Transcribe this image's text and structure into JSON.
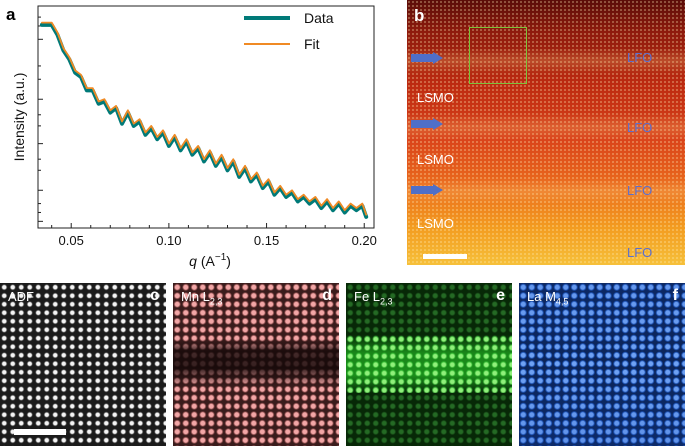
{
  "figure": {
    "panel_a": {
      "letter": "a",
      "xlabel_var": "q",
      "xlabel_unit": "(A",
      "xlabel_exp": "−1",
      "xlabel_close": ")",
      "ylabel": "Intensity (a.u.)",
      "legend": [
        {
          "label": "Data",
          "color": "#007a78"
        },
        {
          "label": "Fit",
          "color": "#f08a24"
        }
      ],
      "x_tick_labels": [
        "0.05",
        "0.10",
        "0.15",
        "0.20"
      ]
    },
    "panel_b": {
      "letter": "b",
      "labels_lfo": [
        "LFO",
        "LFO",
        "LFO",
        "LFO"
      ],
      "labels_lsmo": [
        "LSMO",
        "LSMO",
        "LSMO"
      ]
    },
    "panel_c": {
      "letter": "c",
      "label": "ADF"
    },
    "panel_d": {
      "letter": "d",
      "label": "Mn L",
      "sub": "2,3"
    },
    "panel_e": {
      "letter": "e",
      "label": "Fe L",
      "sub": "2,3"
    },
    "panel_f": {
      "letter": "f",
      "label": "La M",
      "sub": "4,5"
    }
  },
  "chart_data": {
    "type": "line",
    "title": "",
    "xlabel": "q (A^-1)",
    "ylabel": "Intensity (a.u.)",
    "xlim": [
      0.033,
      0.205
    ],
    "ylim": [
      0,
      1
    ],
    "y_scale": "log (unlabelled)",
    "grid": false,
    "legend_position": "top-right",
    "series": [
      {
        "name": "Data",
        "color": "#007a78",
        "x": [
          0.035,
          0.04,
          0.043,
          0.046,
          0.049,
          0.052,
          0.055,
          0.058,
          0.061,
          0.064,
          0.067,
          0.07,
          0.073,
          0.076,
          0.079,
          0.082,
          0.085,
          0.088,
          0.091,
          0.094,
          0.097,
          0.1,
          0.103,
          0.106,
          0.109,
          0.112,
          0.115,
          0.118,
          0.121,
          0.124,
          0.127,
          0.13,
          0.133,
          0.136,
          0.139,
          0.142,
          0.145,
          0.148,
          0.151,
          0.154,
          0.157,
          0.16,
          0.163,
          0.166,
          0.169,
          0.172,
          0.175,
          0.178,
          0.181,
          0.184,
          0.187,
          0.19,
          0.193,
          0.196,
          0.199,
          0.201
        ],
        "y": [
          0.915,
          0.915,
          0.87,
          0.8,
          0.76,
          0.7,
          0.68,
          0.62,
          0.62,
          0.56,
          0.57,
          0.52,
          0.54,
          0.47,
          0.52,
          0.46,
          0.48,
          0.42,
          0.45,
          0.4,
          0.43,
          0.37,
          0.41,
          0.35,
          0.39,
          0.33,
          0.36,
          0.3,
          0.34,
          0.28,
          0.32,
          0.26,
          0.3,
          0.23,
          0.27,
          0.21,
          0.24,
          0.18,
          0.21,
          0.15,
          0.18,
          0.14,
          0.16,
          0.12,
          0.14,
          0.11,
          0.13,
          0.09,
          0.12,
          0.08,
          0.11,
          0.07,
          0.1,
          0.08,
          0.1,
          0.05
        ]
      },
      {
        "name": "Fit",
        "color": "#f08a24",
        "x": [
          0.035,
          0.04,
          0.043,
          0.046,
          0.049,
          0.052,
          0.055,
          0.058,
          0.061,
          0.064,
          0.067,
          0.07,
          0.073,
          0.076,
          0.079,
          0.082,
          0.085,
          0.088,
          0.091,
          0.094,
          0.097,
          0.1,
          0.103,
          0.106,
          0.109,
          0.112,
          0.115,
          0.118,
          0.121,
          0.124,
          0.127,
          0.13,
          0.133,
          0.136,
          0.139,
          0.142,
          0.145,
          0.148,
          0.151,
          0.154,
          0.157,
          0.16,
          0.163,
          0.166,
          0.169,
          0.172,
          0.175,
          0.178,
          0.181,
          0.184,
          0.187,
          0.19,
          0.193,
          0.196,
          0.199,
          0.201
        ],
        "y": [
          0.925,
          0.925,
          0.88,
          0.81,
          0.77,
          0.71,
          0.69,
          0.63,
          0.63,
          0.57,
          0.58,
          0.53,
          0.55,
          0.48,
          0.53,
          0.47,
          0.49,
          0.43,
          0.46,
          0.41,
          0.44,
          0.38,
          0.42,
          0.36,
          0.4,
          0.34,
          0.37,
          0.31,
          0.35,
          0.29,
          0.33,
          0.27,
          0.31,
          0.24,
          0.28,
          0.22,
          0.25,
          0.19,
          0.22,
          0.16,
          0.19,
          0.15,
          0.17,
          0.13,
          0.15,
          0.12,
          0.14,
          0.1,
          0.13,
          0.09,
          0.12,
          0.08,
          0.11,
          0.09,
          0.11,
          0.06
        ]
      }
    ],
    "x_ticks": [
      0.05,
      0.1,
      0.15,
      0.2
    ],
    "x_tick_labels": [
      "0.05",
      "0.10",
      "0.15",
      "0.20"
    ]
  }
}
